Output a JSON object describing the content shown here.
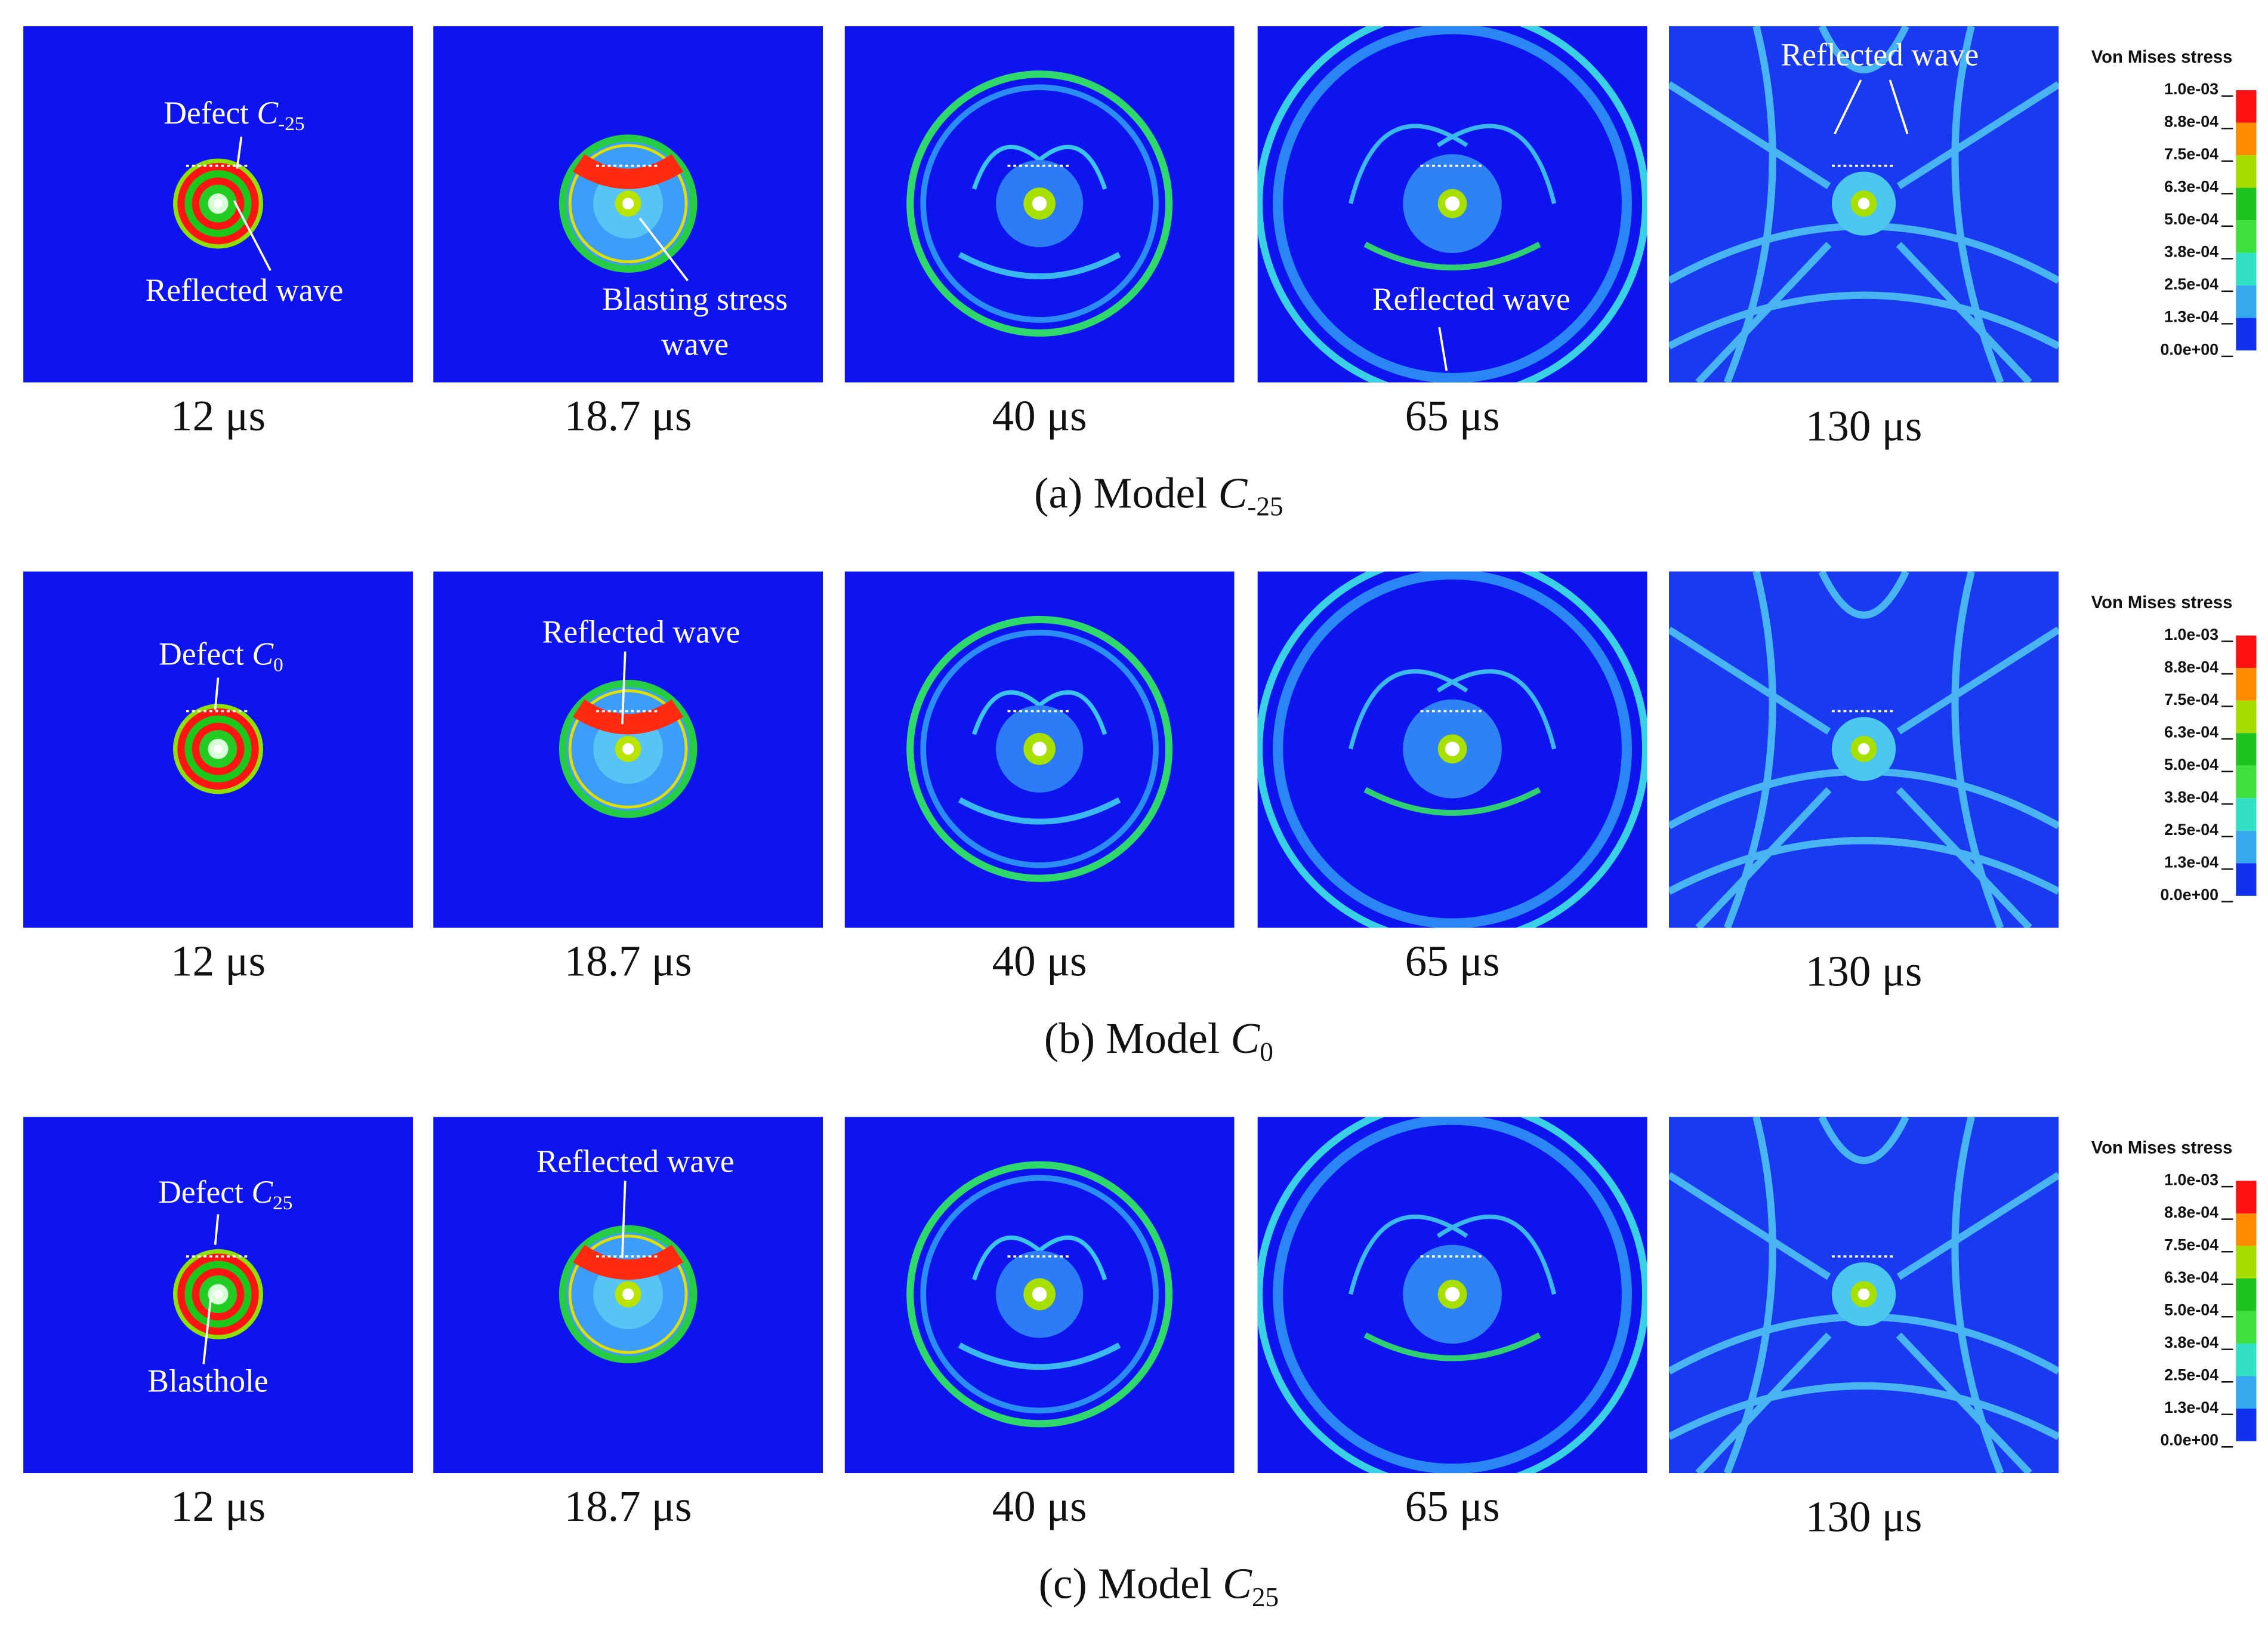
{
  "rows": [
    {
      "caption": {
        "text": "(a) Model ",
        "var": "C",
        "sub": "-25"
      },
      "panels": [
        {
          "time": "12 μs",
          "annotations": [
            {
              "text": "Defect ",
              "var": "C",
              "sub": "-25"
            },
            {
              "text": "Reflected wave"
            }
          ]
        },
        {
          "time": "18.7 μs",
          "annotations": [
            {
              "lines": [
                "Blasting stress",
                "wave"
              ]
            }
          ]
        },
        {
          "time": "40 μs",
          "annotations": []
        },
        {
          "time": "65 μs",
          "annotations": [
            {
              "text": "Reflected wave"
            }
          ]
        },
        {
          "time": "130 μs",
          "annotations": [
            {
              "text": "Reflected wave"
            }
          ]
        }
      ]
    },
    {
      "caption": {
        "text": "(b) Model ",
        "var": "C",
        "sub": "0"
      },
      "panels": [
        {
          "time": "12 μs",
          "annotations": [
            {
              "text": "Defect ",
              "var": "C",
              "sub": "0"
            }
          ]
        },
        {
          "time": "18.7 μs",
          "annotations": [
            {
              "text": "Reflected wave"
            }
          ]
        },
        {
          "time": "40 μs",
          "annotations": []
        },
        {
          "time": "65 μs",
          "annotations": []
        },
        {
          "time": "130 μs",
          "annotations": []
        }
      ]
    },
    {
      "caption": {
        "text": "(c) Model ",
        "var": "C",
        "sub": "25"
      },
      "panels": [
        {
          "time": "12 μs",
          "annotations": [
            {
              "text": "Defect ",
              "var": "C",
              "sub": "25"
            },
            {
              "text": "Blasthole"
            }
          ]
        },
        {
          "time": "18.7 μs",
          "annotations": [
            {
              "text": "Reflected wave"
            }
          ]
        },
        {
          "time": "40 μs",
          "annotations": []
        },
        {
          "time": "65 μs",
          "annotations": []
        },
        {
          "time": "130 μs",
          "annotations": []
        }
      ]
    }
  ],
  "legend": {
    "title": "Von Mises stress",
    "ticks": [
      "1.0e-03",
      "8.8e-04",
      "7.5e-04",
      "6.3e-04",
      "5.0e-04",
      "3.8e-04",
      "2.5e-04",
      "1.3e-04",
      "0.0e+00"
    ],
    "colors": [
      "#ff1010",
      "#ff8a00",
      "#a6dc00",
      "#1ec21e",
      "#3ee03e",
      "#2fe0c4",
      "#35a8f0",
      "#1030f0"
    ]
  }
}
